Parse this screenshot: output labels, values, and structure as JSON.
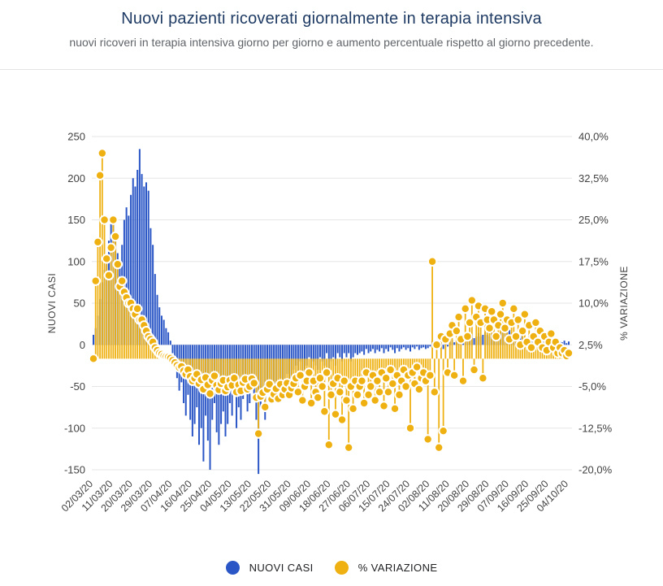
{
  "header": {
    "title": "Nuovi pazienti ricoverati giornalmente in terapia intensiva",
    "subtitle": "nuovi ricoveri in terapia intensiva giorno per giorno e aumento percentuale rispetto al giorno precedente."
  },
  "legend": {
    "series1_label": "NUOVI CASI",
    "series2_label": "% VARIAZIONE"
  },
  "colors": {
    "bars": "#2a56c6",
    "dots": "#eeb111",
    "dot_stroke": "#ffffff",
    "title": "#1f3b64",
    "subtitle": "#5f6368",
    "grid": "#e6e6e6",
    "tick_text": "#424242"
  },
  "chart_data": {
    "type": "bar",
    "title": "Nuovi pazienti ricoverati giornalmente in terapia intensiva",
    "grid": "horizontal",
    "legend_position": "bottom",
    "start_date": "02/03/20",
    "x_tick_labels": [
      "02/03/20",
      "11/03/20",
      "20/03/20",
      "29/03/20",
      "07/04/20",
      "16/04/20",
      "25/04/20",
      "04/05/20",
      "13/05/20",
      "22/05/20",
      "31/05/20",
      "09/06/20",
      "18/06/20",
      "27/06/20",
      "06/07/20",
      "15/07/20",
      "24/07/20",
      "02/08/20",
      "11/08/20",
      "20/08/20",
      "29/08/20",
      "07/09/20",
      "16/09/20",
      "25/09/20",
      "04/10/20"
    ],
    "x_tick_every_days": 9,
    "left_axis": {
      "label": "NUOVI CASI",
      "range": [
        -150,
        250
      ],
      "ticks": [
        "250",
        "200",
        "150",
        "100",
        "50",
        "0",
        "-50",
        "-100",
        "-150"
      ],
      "tick_values": [
        250,
        200,
        150,
        100,
        50,
        0,
        -50,
        -100,
        -150
      ]
    },
    "right_axis": {
      "label": "% VARIAZIONE",
      "range": [
        -20,
        40
      ],
      "ticks": [
        "40,0%",
        "32,5%",
        "25,0%",
        "17,5%",
        "10,0%",
        "2,5%",
        "-5,0%",
        "-12,5%",
        "-20,0%"
      ],
      "tick_values": [
        40,
        32.5,
        25,
        17.5,
        10,
        2.5,
        -5,
        -12.5,
        -20
      ]
    },
    "series": [
      {
        "name": "NUOVI CASI",
        "type": "bar",
        "axis": "left",
        "color": "#2a56c6",
        "values": [
          12,
          20,
          35,
          55,
          75,
          90,
          105,
          125,
          145,
          150,
          130,
          110,
          95,
          120,
          150,
          165,
          155,
          180,
          200,
          190,
          210,
          235,
          205,
          190,
          195,
          185,
          140,
          120,
          85,
          60,
          45,
          35,
          30,
          20,
          15,
          5,
          -10,
          -25,
          -40,
          -55,
          -45,
          -70,
          -85,
          -60,
          -90,
          -110,
          -95,
          -75,
          -120,
          -100,
          -140,
          -85,
          -115,
          -150,
          -90,
          -70,
          -105,
          -120,
          -95,
          -80,
          -110,
          -95,
          -70,
          -85,
          -60,
          -100,
          -75,
          -90,
          -65,
          -55,
          -80,
          -70,
          -50,
          -60,
          -90,
          -155,
          -75,
          -65,
          -90,
          -55,
          -45,
          -70,
          -60,
          -50,
          -65,
          -40,
          -55,
          -45,
          -35,
          -50,
          -40,
          -30,
          -25,
          -35,
          -20,
          -40,
          -30,
          -25,
          -15,
          -35,
          -20,
          -25,
          -30,
          -15,
          -20,
          -25,
          -10,
          -30,
          -20,
          -15,
          -25,
          -10,
          -15,
          -20,
          -10,
          -15,
          -10,
          -20,
          -15,
          -10,
          -12,
          -10,
          -8,
          -12,
          -5,
          -10,
          -8,
          -5,
          -10,
          -6,
          -8,
          -4,
          -10,
          -5,
          -8,
          -3,
          -6,
          -10,
          -4,
          -8,
          -5,
          -3,
          -6,
          -4,
          -8,
          -3,
          -5,
          -2,
          -6,
          -4,
          -3,
          -5,
          -4,
          -2,
          5,
          -3,
          2,
          -4,
          3,
          -5,
          3,
          -2,
          4,
          6,
          3,
          5,
          8,
          4,
          6,
          10,
          5,
          8,
          12,
          8,
          10,
          14,
          10,
          12,
          15,
          12,
          10,
          16,
          14,
          8,
          12,
          15,
          20,
          25,
          22,
          18,
          15,
          12,
          10,
          8,
          12,
          10,
          8,
          6,
          10,
          8,
          6,
          8,
          5,
          6,
          8,
          5,
          6,
          4,
          5,
          3,
          4,
          3,
          4,
          3,
          5,
          2,
          4
        ]
      },
      {
        "name": "% VARIAZIONE",
        "type": "lollipop",
        "axis": "right",
        "color": "#eeb111",
        "values": [
          0,
          14,
          21,
          33,
          37,
          25,
          18,
          15,
          20,
          25,
          22,
          17,
          13,
          14,
          12,
          11,
          10,
          10,
          9,
          8,
          9,
          7,
          7,
          6,
          5,
          4,
          3.5,
          3,
          2,
          1.5,
          1,
          0.8,
          0.5,
          0.4,
          0.3,
          0.1,
          -0.3,
          -0.7,
          -1.2,
          -1.6,
          -1.4,
          -2.2,
          -2.8,
          -2,
          -3.2,
          -4,
          -3.5,
          -2.8,
          -4.5,
          -3.8,
          -5.5,
          -3.4,
          -4.7,
          -6.3,
          -3.9,
          -3.1,
          -4.8,
          -5.6,
          -4.5,
          -3.9,
          -5.8,
          -5.1,
          -3.9,
          -4.8,
          -3.5,
          -6,
          -4.7,
          -5.8,
          -4.3,
          -3.7,
          -5.5,
          -5,
          -3.6,
          -4.4,
          -7,
          -13.5,
          -6.8,
          -6.1,
          -8.7,
          -5.5,
          -4.6,
          -7.3,
          -6.4,
          -5.4,
          -7.2,
          -4.6,
          -6.5,
          -5.5,
          -4.4,
          -6.5,
          -5.3,
          -4.5,
          -3.5,
          -6,
          -3,
          -7.5,
          -5,
          -4,
          -2.5,
          -8,
          -4,
          -6,
          -7,
          -3.5,
          -5,
          -9.5,
          -2.5,
          -15.5,
          -6.5,
          -4.5,
          -10,
          -3.5,
          -6,
          -11,
          -4,
          -7.5,
          -16,
          -5,
          -9,
          -4,
          -6.5,
          -5,
          -4,
          -8,
          -2.5,
          -6.5,
          -5,
          -3,
          -7.5,
          -4,
          -6,
          -2.5,
          -8.5,
          -3.5,
          -6,
          -2,
          -4.5,
          -9,
          -3,
          -6.5,
          -4,
          -2,
          -5,
          -3,
          -12.5,
          -2.5,
          -4.5,
          -1.5,
          -5.5,
          -3.5,
          -2.5,
          -4,
          -14.5,
          -3,
          17.5,
          -6,
          2.5,
          -16,
          4,
          -13,
          3.5,
          -2.5,
          4.5,
          6,
          -3,
          5,
          7.5,
          3.5,
          -4,
          9,
          4,
          6.5,
          10.5,
          -2,
          7.5,
          9.5,
          6.5,
          -3.5,
          9,
          7,
          5.5,
          8.5,
          7,
          4,
          6,
          8,
          10,
          5.5,
          7,
          3.5,
          6.5,
          9,
          4,
          7,
          2.5,
          5,
          8,
          3,
          6,
          2,
          4,
          6.5,
          3,
          5,
          2,
          4,
          1.5,
          3,
          4.5,
          2,
          3,
          1,
          2,
          1,
          1.5,
          0.5,
          1
        ]
      }
    ]
  }
}
